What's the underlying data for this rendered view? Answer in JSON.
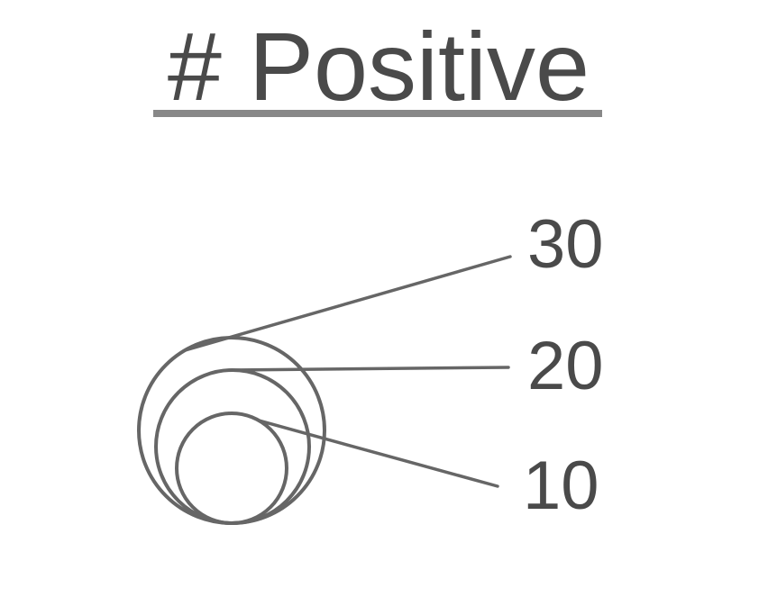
{
  "chart_data": {
    "type": "size-legend",
    "title": "# Positive",
    "values": [
      10,
      20,
      30
    ],
    "labels": [
      "10",
      "20",
      "30"
    ],
    "stroke_color": "#666666",
    "text_color": "#4a4a4a",
    "underline_color": "#888888"
  }
}
